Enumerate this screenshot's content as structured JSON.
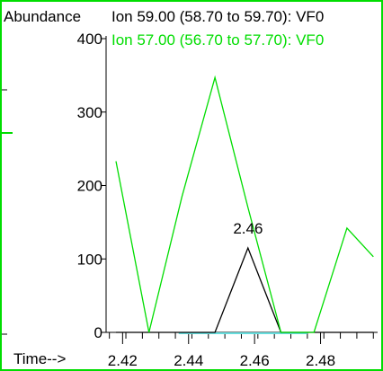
{
  "window": {
    "abundance_label": "Abundance",
    "time_label": "Time-->"
  },
  "chart_data": {
    "type": "line",
    "ylabel": "Abundance",
    "xlabel": "Time-->",
    "xlim": [
      2.415,
      2.4962
    ],
    "ylim": [
      0,
      400
    ],
    "x_ticks": [
      "2.42",
      "2.44",
      "2.46",
      "2.48"
    ],
    "y_ticks": [
      "0",
      "100",
      "200",
      "300",
      "400"
    ],
    "grid": false,
    "legend_position": "top",
    "series": [
      {
        "name": "Ion  59.00 (58.70 to 59.70): VF0",
        "color": "#000000",
        "x": [
          2.418,
          2.428,
          2.438,
          2.448,
          2.458,
          2.468,
          2.478,
          2.488,
          2.496
        ],
        "y": [
          0,
          0,
          0,
          0,
          115,
          0,
          0,
          0,
          0
        ]
      },
      {
        "name": "Ion  57.00 (56.70 to 57.70): VF0",
        "color": "#00dd00",
        "x": [
          2.418,
          2.428,
          2.438,
          2.448,
          2.458,
          2.468,
          2.478,
          2.488,
          2.496
        ],
        "y": [
          233,
          0,
          185,
          347,
          170,
          0,
          0,
          142,
          103
        ]
      }
    ],
    "baseline": {
      "color": "#66dddd",
      "x": [
        2.437,
        2.476
      ],
      "y": [
        0,
        0
      ]
    },
    "annotations": [
      {
        "text": "2.46",
        "x": 2.4572,
        "y": 115
      }
    ]
  }
}
